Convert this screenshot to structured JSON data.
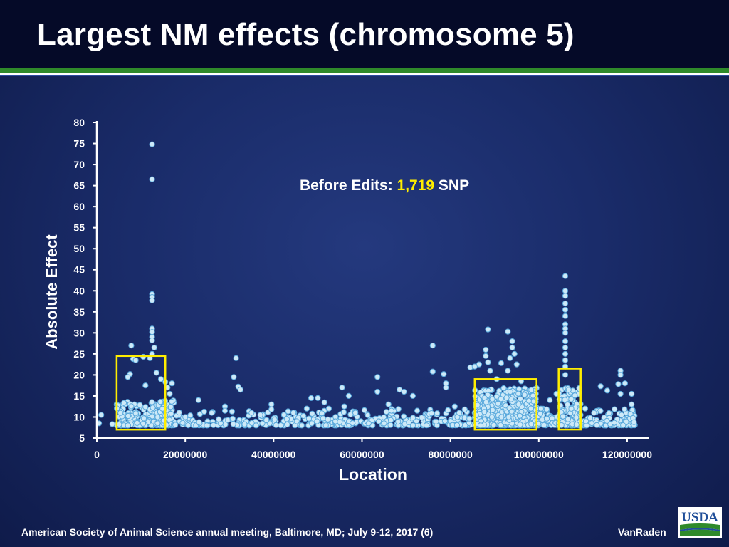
{
  "slide": {
    "title": "Largest NM effects (chromosome 5)",
    "footer": "American Society of Animal Science annual meeting, Baltimore, MD; July  9-12, 2017 (6)",
    "author": "VanRaden",
    "logo_text": "USDA"
  },
  "colors": {
    "title_bar": "#050a28",
    "stripe_green": "#2f8a2a",
    "point_fill": "#cde9f8",
    "point_stroke": "#5aa9dc",
    "box": "#ffee00",
    "highlight_number": "#ffee00",
    "logo_blue": "#1f4e99",
    "logo_green": "#2f8a2a"
  },
  "chart_data": {
    "type": "scatter",
    "annotation": {
      "prefix": "Before Edits: ",
      "number": "1,719",
      "suffix": " SNP"
    },
    "xlabel": "Location",
    "ylabel": "Absolute Effect",
    "xlim": [
      0,
      125000000
    ],
    "ylim": [
      5,
      80
    ],
    "xticks": [
      0,
      20000000,
      40000000,
      60000000,
      80000000,
      100000000,
      120000000
    ],
    "xtick_labels": [
      "0",
      "20000000",
      "40000000",
      "60000000",
      "80000000",
      "100000000",
      "120000000"
    ],
    "yticks": [
      5,
      10,
      15,
      20,
      25,
      30,
      35,
      40,
      45,
      50,
      55,
      60,
      65,
      70,
      75,
      80
    ],
    "ytick_labels": [
      "5",
      "10",
      "15",
      "20",
      "25",
      "30",
      "35",
      "40",
      "45",
      "50",
      "55",
      "60",
      "65",
      "70",
      "75",
      "80"
    ],
    "grid": false,
    "highlight_boxes": [
      {
        "x_range": [
          4500000,
          15500000
        ],
        "y_range": [
          7,
          24.5
        ]
      },
      {
        "x_range": [
          85500000,
          99500000
        ],
        "y_range": [
          7,
          19
        ]
      },
      {
        "x_range": [
          104500000,
          109500000
        ],
        "y_range": [
          7,
          21.5
        ]
      }
    ],
    "points": [
      [
        12500000,
        74.8
      ],
      [
        12500000,
        66.5
      ],
      [
        12500000,
        39.2
      ],
      [
        12500000,
        38.5
      ],
      [
        12500000,
        37.7
      ],
      [
        12500000,
        31.0
      ],
      [
        12500000,
        30.2
      ],
      [
        12500000,
        29.0
      ],
      [
        12500000,
        28.2
      ],
      [
        13000000,
        26.5
      ],
      [
        12500000,
        25.0
      ],
      [
        12000000,
        24.0
      ],
      [
        7800000,
        27.0
      ],
      [
        8200000,
        23.8
      ],
      [
        8800000,
        23.5
      ],
      [
        10500000,
        24.3
      ],
      [
        11000000,
        17.5
      ],
      [
        7500000,
        20.2
      ],
      [
        7000000,
        19.5
      ],
      [
        13500000,
        20.5
      ],
      [
        14500000,
        19.0
      ],
      [
        15500000,
        18.3
      ],
      [
        16000000,
        17.0
      ],
      [
        17000000,
        18.0
      ],
      [
        16500000,
        15.5
      ],
      [
        31500000,
        24.0
      ],
      [
        31000000,
        19.5
      ],
      [
        32000000,
        17.2
      ],
      [
        32500000,
        16.5
      ],
      [
        55500000,
        17.0
      ],
      [
        57000000,
        15.0
      ],
      [
        63500000,
        19.5
      ],
      [
        63500000,
        16.0
      ],
      [
        68500000,
        16.5
      ],
      [
        69500000,
        16.0
      ],
      [
        71500000,
        15.0
      ],
      [
        76000000,
        27.0
      ],
      [
        76000000,
        20.8
      ],
      [
        78500000,
        20.2
      ],
      [
        79000000,
        18.0
      ],
      [
        79000000,
        17.0
      ],
      [
        84500000,
        21.8
      ],
      [
        85500000,
        22.0
      ],
      [
        86500000,
        22.5
      ],
      [
        88500000,
        30.8
      ],
      [
        88000000,
        26.0
      ],
      [
        88000000,
        24.5
      ],
      [
        88500000,
        23.0
      ],
      [
        89000000,
        21.0
      ],
      [
        90500000,
        19.0
      ],
      [
        91500000,
        22.8
      ],
      [
        93000000,
        30.3
      ],
      [
        94000000,
        28.0
      ],
      [
        94000000,
        26.5
      ],
      [
        94500000,
        25.0
      ],
      [
        93500000,
        24.0
      ],
      [
        95000000,
        22.5
      ],
      [
        93000000,
        21.0
      ],
      [
        96000000,
        18.5
      ],
      [
        106000000,
        43.5
      ],
      [
        106000000,
        40.0
      ],
      [
        106000000,
        38.8
      ],
      [
        106000000,
        37.0
      ],
      [
        106000000,
        35.5
      ],
      [
        106000000,
        34.0
      ],
      [
        106000000,
        32.0
      ],
      [
        106000000,
        31.0
      ],
      [
        106000000,
        30.0
      ],
      [
        106000000,
        28.0
      ],
      [
        106000000,
        26.5
      ],
      [
        106000000,
        25.0
      ],
      [
        106000000,
        23.5
      ],
      [
        106000000,
        22.0
      ],
      [
        106000000,
        20.0
      ],
      [
        104000000,
        15.5
      ],
      [
        114000000,
        17.3
      ],
      [
        115500000,
        16.3
      ],
      [
        118500000,
        21.0
      ],
      [
        118500000,
        20.0
      ],
      [
        118000000,
        17.8
      ],
      [
        119500000,
        18.0
      ],
      [
        118500000,
        15.5
      ],
      [
        121000000,
        15.5
      ],
      [
        121000000,
        13.0
      ],
      [
        1000000,
        10.5
      ],
      [
        500000,
        8.5
      ],
      [
        3500000,
        8.3
      ],
      [
        20000000,
        10.0
      ],
      [
        23000000,
        14.0
      ],
      [
        26000000,
        11.0
      ],
      [
        29000000,
        12.5
      ],
      [
        29000000,
        11.5
      ],
      [
        35000000,
        11.0
      ],
      [
        37000000,
        10.5
      ],
      [
        39500000,
        13.0
      ],
      [
        39500000,
        11.8
      ],
      [
        43000000,
        9.5
      ],
      [
        47500000,
        12.0
      ],
      [
        48500000,
        14.5
      ],
      [
        50000000,
        14.5
      ],
      [
        51500000,
        13.5
      ],
      [
        52500000,
        12.0
      ],
      [
        56000000,
        12.5
      ],
      [
        58500000,
        11.0
      ],
      [
        61500000,
        8.5
      ],
      [
        66000000,
        13.0
      ],
      [
        72500000,
        11.5
      ],
      [
        81000000,
        12.5
      ],
      [
        82000000,
        11.0
      ],
      [
        100500000,
        12.0
      ],
      [
        102500000,
        14.0
      ],
      [
        110500000,
        12.0
      ],
      [
        112500000,
        11.0
      ]
    ],
    "dense_regions": [
      {
        "x_range": [
          4500000,
          17500000
        ],
        "y_range": [
          8,
          14
        ],
        "count": 240
      },
      {
        "x_range": [
          17500000,
          54000000
        ],
        "y_range": [
          8,
          11.5
        ],
        "count": 170
      },
      {
        "x_range": [
          54000000,
          85000000
        ],
        "y_range": [
          8,
          12
        ],
        "count": 170
      },
      {
        "x_range": [
          85500000,
          99500000
        ],
        "y_range": [
          8,
          17
        ],
        "count": 520
      },
      {
        "x_range": [
          99500000,
          104500000
        ],
        "y_range": [
          8,
          12
        ],
        "count": 60
      },
      {
        "x_range": [
          104500000,
          109500000
        ],
        "y_range": [
          8,
          17
        ],
        "count": 140
      },
      {
        "x_range": [
          109500000,
          122000000
        ],
        "y_range": [
          8,
          12
        ],
        "count": 90
      }
    ]
  }
}
